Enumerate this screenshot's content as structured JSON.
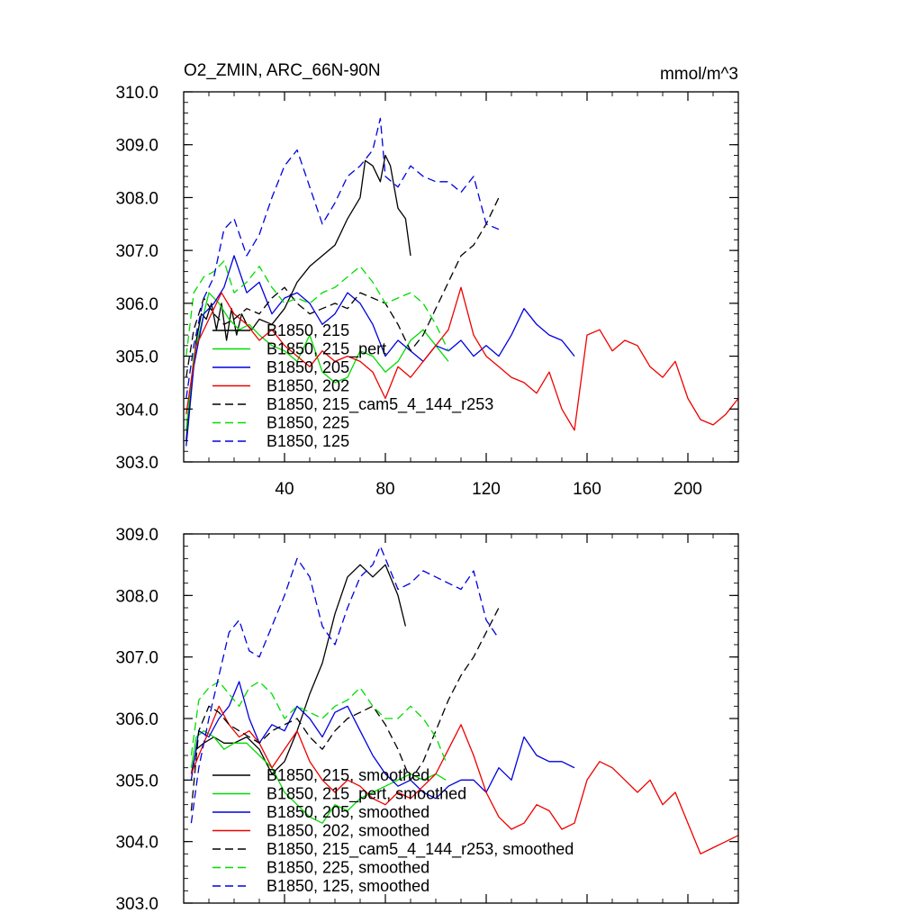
{
  "header": {
    "title": "O2_ZMIN, ARC_66N-90N",
    "units": "mmol/m^3"
  },
  "chart_data": [
    {
      "type": "line",
      "xlim": [
        0,
        220
      ],
      "ylim": [
        303.0,
        310.0
      ],
      "xticks": [
        40,
        80,
        120,
        160,
        200
      ],
      "xtick_labels": [
        "40",
        "80",
        "120",
        "160",
        "200"
      ],
      "yticks": [
        303,
        304,
        305,
        306,
        307,
        308,
        309,
        310
      ],
      "ytick_labels": [
        "303.0",
        "304.0",
        "305.0",
        "306.0",
        "307.0",
        "308.0",
        "309.0",
        "310.0"
      ],
      "legend_position": "bottom-left",
      "series": [
        {
          "name": "B1850, 215",
          "color": "#000000",
          "dash": "solid",
          "x": [
            1,
            3,
            5,
            7,
            9,
            11,
            13,
            15,
            17,
            19,
            21,
            23,
            25,
            27,
            30,
            35,
            40,
            45,
            50,
            55,
            60,
            65,
            70,
            72,
            75,
            78,
            80,
            82,
            85,
            88,
            90
          ],
          "y": [
            303.4,
            304.5,
            305.3,
            305.8,
            305.7,
            306.0,
            305.5,
            306.0,
            305.3,
            305.9,
            305.4,
            305.8,
            305.6,
            305.5,
            305.7,
            305.6,
            305.9,
            306.4,
            306.7,
            306.9,
            307.1,
            307.6,
            308.0,
            308.7,
            308.6,
            308.3,
            308.8,
            308.6,
            307.8,
            307.6,
            306.9
          ]
        },
        {
          "name": "B1850, 215_pert",
          "color": "#00dd00",
          "dash": "solid",
          "x": [
            1,
            4,
            7,
            10,
            14,
            18,
            22,
            26,
            30,
            35,
            40,
            45,
            50,
            55,
            60,
            65,
            70,
            75,
            80,
            85,
            90,
            95,
            100,
            105
          ],
          "y": [
            303.6,
            305.0,
            305.6,
            306.2,
            306.0,
            305.7,
            305.5,
            305.6,
            305.4,
            305.2,
            305.1,
            304.9,
            305.4,
            304.7,
            304.5,
            304.6,
            305.1,
            305.0,
            304.7,
            304.9,
            305.3,
            305.5,
            305.2,
            304.9
          ]
        },
        {
          "name": "B1850, 205",
          "color": "#0000dd",
          "dash": "solid",
          "x": [
            1,
            4,
            8,
            12,
            16,
            20,
            25,
            30,
            35,
            40,
            45,
            50,
            55,
            60,
            65,
            70,
            75,
            80,
            85,
            90,
            95,
            100,
            105,
            110,
            115,
            120,
            125,
            130,
            135,
            140,
            145,
            150,
            155
          ],
          "y": [
            303.3,
            304.8,
            305.8,
            306.0,
            306.3,
            306.9,
            306.2,
            306.4,
            305.8,
            306.1,
            306.2,
            306.0,
            305.6,
            305.8,
            306.2,
            306.0,
            305.6,
            305.0,
            305.3,
            305.1,
            304.9,
            305.2,
            305.1,
            305.3,
            305.0,
            305.2,
            305.0,
            305.4,
            305.9,
            305.6,
            305.4,
            305.3,
            305.0
          ]
        },
        {
          "name": "B1850, 202",
          "color": "#ee0000",
          "dash": "solid",
          "x": [
            1,
            5,
            10,
            15,
            20,
            25,
            30,
            35,
            40,
            45,
            50,
            55,
            60,
            65,
            70,
            75,
            80,
            85,
            90,
            95,
            100,
            105,
            110,
            115,
            120,
            125,
            130,
            135,
            140,
            145,
            150,
            155,
            160,
            165,
            170,
            175,
            180,
            185,
            190,
            195,
            200,
            205,
            210,
            215,
            220
          ],
          "y": [
            303.9,
            305.2,
            305.7,
            306.2,
            305.8,
            305.6,
            305.3,
            305.5,
            305.2,
            305.0,
            304.8,
            305.1,
            304.9,
            305.0,
            304.9,
            304.7,
            304.2,
            304.8,
            304.6,
            304.9,
            305.2,
            305.5,
            306.3,
            305.4,
            305.0,
            304.8,
            304.6,
            304.5,
            304.3,
            304.7,
            304.0,
            303.6,
            305.4,
            305.5,
            305.1,
            305.3,
            305.2,
            304.8,
            304.6,
            304.9,
            304.2,
            303.8,
            303.7,
            303.9,
            304.2
          ]
        },
        {
          "name": "B1850, 215_cam5_4_144_r253",
          "color": "#000000",
          "dash": "dash",
          "x": [
            1,
            4,
            8,
            12,
            16,
            20,
            25,
            30,
            35,
            40,
            45,
            50,
            55,
            60,
            65,
            70,
            75,
            80,
            85,
            90,
            95,
            100,
            105,
            110,
            115,
            120,
            125
          ],
          "y": [
            304.6,
            305.5,
            306.1,
            305.8,
            305.6,
            305.7,
            305.9,
            305.8,
            306.1,
            306.3,
            306.0,
            305.8,
            305.9,
            306.0,
            305.9,
            306.2,
            306.1,
            306.0,
            305.6,
            305.1,
            305.4,
            305.9,
            306.4,
            306.9,
            307.1,
            307.5,
            308.0
          ]
        },
        {
          "name": "B1850, 225",
          "color": "#00dd00",
          "dash": "dash",
          "x": [
            1,
            4,
            8,
            12,
            16,
            20,
            25,
            30,
            35,
            40,
            45,
            50,
            55,
            60,
            65,
            70,
            75,
            80,
            85,
            90,
            95,
            100,
            105
          ],
          "y": [
            305.0,
            306.2,
            306.5,
            306.6,
            306.8,
            306.2,
            306.4,
            306.7,
            306.3,
            306.0,
            306.1,
            306.0,
            306.2,
            306.3,
            306.5,
            306.7,
            306.4,
            306.0,
            306.1,
            306.2,
            306.0,
            305.6,
            305.1
          ]
        },
        {
          "name": "B1850, 125",
          "color": "#0000dd",
          "dash": "dash",
          "x": [
            1,
            4,
            8,
            12,
            16,
            20,
            25,
            30,
            35,
            40,
            45,
            50,
            55,
            60,
            65,
            70,
            75,
            78,
            80,
            85,
            90,
            95,
            100,
            105,
            110,
            115,
            120,
            125
          ],
          "y": [
            304.2,
            305.2,
            306.1,
            306.5,
            307.4,
            307.6,
            306.9,
            307.3,
            308.0,
            308.6,
            308.9,
            308.2,
            307.5,
            307.9,
            308.4,
            308.6,
            308.9,
            309.5,
            308.4,
            308.2,
            308.6,
            308.4,
            308.3,
            308.3,
            308.1,
            308.4,
            307.5,
            307.4
          ]
        }
      ]
    },
    {
      "type": "line",
      "xlim": [
        0,
        220
      ],
      "ylim": [
        303.0,
        309.0
      ],
      "yticks": [
        303,
        304,
        305,
        306,
        307,
        308,
        309
      ],
      "ytick_labels": [
        "303.0",
        "304.0",
        "305.0",
        "306.0",
        "307.0",
        "308.0",
        "309.0"
      ],
      "xtick_labels": [],
      "legend_position": "bottom-left",
      "series": [
        {
          "name": "B1850, 215, smoothed",
          "color": "#000000",
          "dash": "solid",
          "x": [
            3,
            5,
            8,
            12,
            16,
            20,
            25,
            30,
            35,
            40,
            45,
            50,
            55,
            60,
            65,
            70,
            75,
            80,
            85,
            88
          ],
          "y": [
            305.1,
            305.5,
            305.6,
            305.7,
            305.6,
            305.6,
            305.7,
            305.5,
            305.1,
            305.3,
            305.8,
            306.4,
            306.9,
            307.7,
            308.3,
            308.5,
            308.3,
            308.5,
            308.0,
            307.5
          ]
        },
        {
          "name": "B1850, 215_pert, smoothed",
          "color": "#00dd00",
          "dash": "solid",
          "x": [
            3,
            5,
            8,
            12,
            16,
            20,
            25,
            30,
            35,
            40,
            45,
            50,
            55,
            60,
            65,
            70,
            75,
            80,
            85,
            90,
            95,
            100,
            104
          ],
          "y": [
            305.2,
            305.7,
            305.8,
            305.7,
            305.5,
            305.6,
            305.6,
            305.4,
            305.2,
            304.8,
            304.6,
            304.4,
            304.3,
            304.6,
            304.5,
            304.7,
            304.8,
            304.9,
            305.0,
            305.1,
            305.0,
            305.1,
            305.0
          ]
        },
        {
          "name": "B1850, 205, smoothed",
          "color": "#0000dd",
          "dash": "solid",
          "x": [
            3,
            6,
            10,
            14,
            18,
            22,
            26,
            30,
            35,
            40,
            45,
            50,
            55,
            60,
            65,
            70,
            75,
            80,
            85,
            90,
            95,
            100,
            105,
            110,
            115,
            120,
            125,
            130,
            135,
            140,
            145,
            150,
            155
          ],
          "y": [
            305.0,
            305.8,
            305.7,
            306.0,
            306.2,
            306.6,
            306.0,
            305.6,
            305.9,
            305.8,
            306.2,
            306.0,
            305.7,
            306.1,
            306.2,
            305.8,
            305.4,
            305.1,
            304.9,
            305.0,
            304.8,
            304.7,
            304.9,
            305.0,
            305.0,
            304.8,
            305.2,
            305.0,
            305.7,
            305.4,
            305.3,
            305.3,
            305.2
          ]
        },
        {
          "name": "B1850, 202, smoothed",
          "color": "#ee0000",
          "dash": "solid",
          "x": [
            3,
            6,
            10,
            14,
            18,
            22,
            26,
            30,
            35,
            40,
            45,
            50,
            55,
            60,
            65,
            70,
            75,
            80,
            85,
            90,
            95,
            100,
            105,
            110,
            115,
            120,
            125,
            130,
            135,
            140,
            145,
            150,
            155,
            160,
            165,
            170,
            175,
            180,
            185,
            190,
            195,
            200,
            205,
            210,
            215,
            220
          ],
          "y": [
            305.1,
            305.4,
            305.8,
            306.2,
            305.9,
            305.7,
            305.8,
            305.6,
            305.2,
            305.5,
            305.8,
            305.3,
            305.0,
            304.8,
            305.0,
            304.9,
            304.7,
            304.6,
            304.8,
            304.7,
            304.9,
            305.1,
            305.5,
            305.9,
            305.4,
            304.8,
            304.4,
            304.2,
            304.3,
            304.6,
            304.5,
            304.2,
            304.3,
            305.0,
            305.3,
            305.2,
            305.0,
            304.8,
            305.0,
            304.6,
            304.8,
            304.3,
            303.8,
            303.9,
            304.0,
            304.1
          ]
        },
        {
          "name": "B1850, 215_cam5_4_144_r253, smoothed",
          "color": "#000000",
          "dash": "dash",
          "x": [
            3,
            6,
            10,
            14,
            18,
            22,
            26,
            30,
            35,
            40,
            45,
            50,
            55,
            60,
            65,
            70,
            75,
            80,
            85,
            90,
            95,
            100,
            105,
            110,
            115,
            120,
            125
          ],
          "y": [
            304.5,
            305.8,
            306.2,
            306.1,
            305.9,
            305.8,
            305.7,
            305.6,
            305.8,
            305.9,
            306.0,
            305.7,
            305.5,
            305.8,
            306.0,
            306.1,
            306.2,
            305.9,
            305.5,
            305.0,
            305.3,
            305.8,
            306.3,
            306.7,
            307.0,
            307.4,
            307.8
          ]
        },
        {
          "name": "B1850, 225, smoothed",
          "color": "#00dd00",
          "dash": "dash",
          "x": [
            3,
            6,
            10,
            14,
            18,
            22,
            26,
            30,
            35,
            40,
            45,
            50,
            55,
            60,
            65,
            70,
            75,
            80,
            85,
            90,
            95,
            100,
            104
          ],
          "y": [
            305.4,
            306.3,
            306.5,
            306.6,
            306.4,
            306.2,
            306.5,
            306.6,
            306.4,
            306.0,
            306.2,
            306.1,
            306.0,
            306.2,
            306.3,
            306.5,
            306.2,
            306.0,
            306.0,
            306.2,
            306.0,
            305.7,
            305.3
          ]
        },
        {
          "name": "B1850, 125, smoothed",
          "color": "#0000dd",
          "dash": "dash",
          "x": [
            3,
            6,
            10,
            14,
            18,
            22,
            26,
            30,
            35,
            40,
            45,
            50,
            55,
            60,
            65,
            70,
            75,
            78,
            80,
            85,
            90,
            95,
            100,
            105,
            110,
            115,
            120,
            125
          ],
          "y": [
            304.3,
            305.2,
            306.0,
            306.7,
            307.4,
            307.6,
            307.1,
            307.0,
            307.5,
            308.0,
            308.6,
            308.3,
            307.5,
            307.2,
            307.8,
            308.3,
            308.5,
            308.8,
            308.6,
            308.1,
            308.2,
            308.4,
            308.3,
            308.2,
            308.1,
            308.4,
            307.6,
            307.3
          ]
        }
      ]
    }
  ]
}
